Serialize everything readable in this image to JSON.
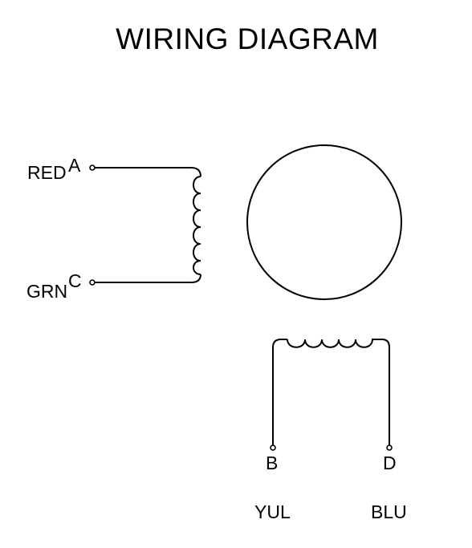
{
  "title": "WIRING DIAGRAM",
  "terminals": {
    "a": {
      "letter": "A",
      "color_label": "RED"
    },
    "c": {
      "letter": "C",
      "color_label": "GRN"
    },
    "b": {
      "letter": "B",
      "color_label": "YUL"
    },
    "d": {
      "letter": "D",
      "color_label": "BLU"
    }
  },
  "colors": {
    "line": "#000000",
    "background": "#ffffff"
  }
}
